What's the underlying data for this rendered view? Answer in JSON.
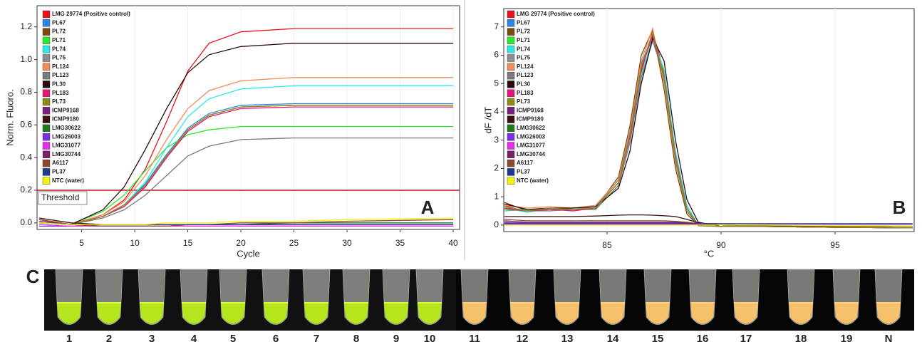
{
  "chart_data": [
    {
      "type": "line",
      "panel": "A",
      "x_label": "Cycle",
      "y_label": "Norm. Fluoro.",
      "x": [
        1,
        4,
        7,
        9,
        11,
        13,
        15,
        17,
        20,
        25,
        30,
        40
      ],
      "xlim": [
        0.8,
        40.6
      ],
      "xticks": [
        5,
        10,
        15,
        20,
        25,
        30,
        35,
        40
      ],
      "ylim": [
        -0.04,
        1.33
      ],
      "yticks": [
        {
          "value": 0,
          "label": "0.0"
        },
        0.2,
        0.4,
        0.6,
        0.8,
        {
          "value": 1,
          "label": "1.0"
        },
        1.2
      ],
      "threshold": {
        "value": 0.2,
        "label": "Threshold",
        "color": "#c0141c"
      },
      "series": [
        {
          "name": "LMG 29774 (Positive control)",
          "color": "#e8141c",
          "values": [
            0.02,
            -0.01,
            0.05,
            0.14,
            0.33,
            0.62,
            0.93,
            1.1,
            1.17,
            1.19,
            1.19,
            1.19
          ]
        },
        {
          "name": "PL67",
          "color": "#2b84e8",
          "values": [
            0.02,
            -0.01,
            0.04,
            0.11,
            0.24,
            0.42,
            0.58,
            0.67,
            0.72,
            0.73,
            0.73,
            0.73
          ]
        },
        {
          "name": "PL72",
          "color": "#7b4a12",
          "values": [
            0.02,
            -0.01,
            0.04,
            0.11,
            0.23,
            0.41,
            0.57,
            0.66,
            0.71,
            0.72,
            0.72,
            0.72
          ]
        },
        {
          "name": "PL71",
          "color": "#2ee82e",
          "values": [
            0.02,
            -0.01,
            0.07,
            0.17,
            0.32,
            0.46,
            0.54,
            0.57,
            0.59,
            0.59,
            0.59,
            0.59
          ]
        },
        {
          "name": "PL74",
          "color": "#2ee8e8",
          "values": [
            0.02,
            -0.01,
            0.04,
            0.11,
            0.25,
            0.46,
            0.65,
            0.76,
            0.82,
            0.84,
            0.84,
            0.84
          ]
        },
        {
          "name": "PL75",
          "color": "#8c8c8c",
          "values": [
            0.02,
            -0.01,
            0.04,
            0.1,
            0.23,
            0.41,
            0.57,
            0.66,
            0.71,
            0.72,
            0.72,
            0.72
          ]
        },
        {
          "name": "PL124",
          "color": "#f28c5a",
          "values": [
            0.02,
            -0.01,
            0.05,
            0.13,
            0.29,
            0.51,
            0.7,
            0.81,
            0.87,
            0.89,
            0.89,
            0.89
          ]
        },
        {
          "name": "PL123",
          "color": "#7a7a7a",
          "values": [
            0.02,
            -0.01,
            0.03,
            0.08,
            0.17,
            0.29,
            0.41,
            0.47,
            0.51,
            0.52,
            0.52,
            0.52
          ]
        },
        {
          "name": "PL30",
          "color": "#2a0a0a",
          "values": [
            0.02,
            -0.01,
            0.08,
            0.22,
            0.45,
            0.7,
            0.92,
            1.03,
            1.08,
            1.1,
            1.1,
            1.1
          ]
        },
        {
          "name": "PL183",
          "color": "#e8147a",
          "values": [
            0.02,
            -0.01,
            0.04,
            0.1,
            0.22,
            0.4,
            0.56,
            0.65,
            0.7,
            0.71,
            0.71,
            0.71
          ]
        },
        {
          "name": "PL73",
          "color": "#8c8c14",
          "values": [
            0.02,
            -0.01,
            0.04,
            0.11,
            0.23,
            0.41,
            0.57,
            0.66,
            0.71,
            0.72,
            0.72,
            0.72
          ]
        },
        {
          "name": "ICMP9168",
          "color": "#7a1f7a",
          "values": [
            0.01,
            -0.01,
            -0.02,
            -0.02,
            -0.02,
            -0.02,
            -0.02,
            -0.02,
            -0.02,
            -0.02,
            -0.02,
            -0.02
          ]
        },
        {
          "name": "ICMP9180",
          "color": "#3a1010",
          "values": [
            0.03,
            0.0,
            -0.01,
            -0.01,
            -0.01,
            -0.01,
            -0.01,
            -0.01,
            -0.01,
            -0.01,
            -0.01,
            -0.01
          ]
        },
        {
          "name": "LMG30622",
          "color": "#1f7a1f",
          "values": [
            0.0,
            -0.01,
            -0.01,
            -0.01,
            -0.01,
            -0.01,
            -0.01,
            -0.01,
            -0.01,
            0.0,
            0.0,
            0.0
          ]
        },
        {
          "name": "LMG26003",
          "color": "#7a2ee8",
          "values": [
            -0.02,
            -0.02,
            -0.02,
            -0.02,
            -0.02,
            -0.02,
            -0.02,
            -0.02,
            -0.02,
            -0.02,
            -0.02,
            -0.02
          ]
        },
        {
          "name": "LMG31077",
          "color": "#e82ee8",
          "values": [
            -0.01,
            -0.02,
            -0.02,
            -0.02,
            -0.02,
            -0.02,
            -0.02,
            -0.02,
            -0.02,
            -0.02,
            -0.02,
            -0.02
          ]
        },
        {
          "name": "LMG30744",
          "color": "#7a1f6a",
          "values": [
            0.0,
            -0.01,
            -0.01,
            -0.01,
            -0.01,
            -0.01,
            -0.01,
            -0.01,
            -0.01,
            -0.01,
            -0.01,
            -0.01
          ]
        },
        {
          "name": "A6117",
          "color": "#8c4a2a",
          "values": [
            0.02,
            -0.01,
            -0.02,
            -0.02,
            -0.02,
            -0.02,
            -0.01,
            -0.01,
            0.0,
            0.0,
            0.01,
            0.02
          ]
        },
        {
          "name": "PL37",
          "color": "#1f3a8c",
          "values": [
            0.0,
            -0.01,
            -0.01,
            -0.01,
            -0.01,
            -0.01,
            -0.01,
            -0.01,
            -0.01,
            -0.01,
            -0.01,
            -0.01
          ]
        },
        {
          "name": "NTC (water)",
          "color": "#f2f20a",
          "values": [
            0.0,
            -0.01,
            -0.01,
            -0.01,
            -0.01,
            0.0,
            0.0,
            0.0,
            0.01,
            0.01,
            0.02,
            0.03
          ]
        }
      ]
    },
    {
      "type": "line",
      "panel": "B",
      "x_label": "°C",
      "y_label": "dF /dT",
      "x": [
        80.5,
        81.5,
        82.5,
        83.5,
        84.5,
        85.5,
        86,
        86.5,
        87,
        87.5,
        88,
        88.5,
        89,
        90,
        92,
        95,
        98.4
      ],
      "xlim": [
        80.47,
        98.47
      ],
      "xticks": [
        85,
        90,
        95
      ],
      "ylim": [
        -0.23,
        7.65
      ],
      "yticks": [
        0,
        1,
        2,
        3,
        4,
        5,
        6,
        7
      ],
      "series": [
        {
          "name": "LMG 29774 (Positive control)",
          "color": "#e8141c",
          "values": [
            0.7,
            0.45,
            0.6,
            0.55,
            0.6,
            1.5,
            3.0,
            5.4,
            6.85,
            5.4,
            2.5,
            0.6,
            0.0,
            -0.05,
            -0.05,
            -0.08,
            -0.1
          ]
        },
        {
          "name": "PL67",
          "color": "#2b84e8",
          "values": [
            0.6,
            0.5,
            0.55,
            0.6,
            0.65,
            1.6,
            3.3,
            5.7,
            6.7,
            5.0,
            2.2,
            0.5,
            0.0,
            -0.05,
            -0.05,
            -0.08,
            -0.1
          ]
        },
        {
          "name": "PL72",
          "color": "#7b4a12",
          "values": [
            0.8,
            0.5,
            0.6,
            0.5,
            0.6,
            1.7,
            3.5,
            6.0,
            6.9,
            4.8,
            2.0,
            0.4,
            -0.02,
            -0.05,
            -0.05,
            -0.08,
            -0.1
          ]
        },
        {
          "name": "PL71",
          "color": "#2ee82e",
          "values": [
            0.5,
            0.55,
            0.5,
            0.6,
            0.6,
            1.5,
            3.1,
            5.5,
            6.75,
            5.3,
            2.4,
            0.6,
            0.0,
            -0.05,
            -0.05,
            -0.08,
            -0.1
          ]
        },
        {
          "name": "PL74",
          "color": "#2ee8e8",
          "values": [
            0.6,
            0.45,
            0.6,
            0.55,
            0.55,
            1.4,
            3.0,
            5.3,
            6.6,
            5.5,
            2.6,
            0.7,
            0.0,
            -0.05,
            -0.05,
            -0.08,
            -0.1
          ]
        },
        {
          "name": "PL75",
          "color": "#8c8c8c",
          "values": [
            0.65,
            0.5,
            0.55,
            0.6,
            0.6,
            1.6,
            3.2,
            5.6,
            6.8,
            5.1,
            2.3,
            0.5,
            0.0,
            -0.05,
            -0.05,
            -0.08,
            -0.1
          ]
        },
        {
          "name": "PL124",
          "color": "#f28c5a",
          "values": [
            0.7,
            0.6,
            0.65,
            0.6,
            0.7,
            1.6,
            3.3,
            5.8,
            6.95,
            5.0,
            2.2,
            0.5,
            0.0,
            -0.05,
            -0.05,
            -0.08,
            -0.1
          ]
        },
        {
          "name": "PL123",
          "color": "#7a7a7a",
          "values": [
            0.55,
            0.5,
            0.5,
            0.55,
            0.55,
            1.4,
            2.9,
            5.2,
            6.5,
            5.3,
            2.5,
            0.6,
            0.0,
            -0.05,
            -0.05,
            -0.08,
            -0.1
          ]
        },
        {
          "name": "PL30",
          "color": "#2a0a0a",
          "values": [
            0.75,
            0.55,
            0.6,
            0.6,
            0.65,
            1.3,
            2.6,
            5.0,
            6.6,
            5.8,
            3.0,
            0.9,
            0.1,
            -0.05,
            -0.05,
            -0.08,
            -0.1
          ]
        },
        {
          "name": "PL183",
          "color": "#e8147a",
          "values": [
            0.6,
            0.5,
            0.55,
            0.5,
            0.6,
            1.5,
            3.1,
            5.5,
            6.7,
            5.2,
            2.3,
            0.5,
            0.0,
            -0.05,
            -0.05,
            -0.08,
            -0.1
          ]
        },
        {
          "name": "PL73",
          "color": "#8c8c14",
          "values": [
            0.65,
            0.5,
            0.6,
            0.55,
            0.6,
            1.5,
            3.2,
            5.6,
            6.8,
            5.2,
            2.3,
            0.5,
            0.0,
            -0.05,
            -0.05,
            -0.08,
            -0.1
          ]
        },
        {
          "name": "ICMP9168",
          "color": "#7a1f7a",
          "values": [
            0.1,
            0.05,
            0.05,
            0.05,
            0.05,
            0.05,
            0.05,
            0.05,
            0.05,
            0.05,
            0.05,
            0.05,
            0.03,
            0.0,
            -0.02,
            -0.05,
            -0.05
          ]
        },
        {
          "name": "ICMP9180",
          "color": "#3a1010",
          "values": [
            0.3,
            0.3,
            0.3,
            0.3,
            0.32,
            0.35,
            0.36,
            0.36,
            0.35,
            0.33,
            0.3,
            0.2,
            0.08,
            0.0,
            -0.02,
            -0.05,
            -0.05
          ]
        },
        {
          "name": "LMG30622",
          "color": "#1f7a1f",
          "values": [
            0.05,
            0.05,
            0.05,
            0.05,
            0.05,
            0.05,
            0.05,
            0.05,
            0.05,
            0.05,
            0.05,
            0.05,
            0.03,
            0.0,
            -0.02,
            -0.05,
            -0.05
          ]
        },
        {
          "name": "LMG26003",
          "color": "#7a2ee8",
          "values": [
            0.08,
            0.08,
            0.08,
            0.08,
            0.08,
            0.08,
            0.08,
            0.08,
            0.08,
            0.08,
            0.08,
            0.08,
            0.06,
            0.05,
            0.04,
            0.03,
            0.03
          ]
        },
        {
          "name": "LMG31077",
          "color": "#e82ee8",
          "values": [
            0.03,
            0.03,
            0.03,
            0.03,
            0.03,
            0.03,
            0.03,
            0.03,
            0.03,
            0.03,
            0.03,
            0.03,
            0.02,
            0.0,
            -0.02,
            -0.04,
            -0.05
          ]
        },
        {
          "name": "LMG30744",
          "color": "#7a1f6a",
          "values": [
            0.15,
            0.1,
            0.1,
            0.1,
            0.1,
            0.1,
            0.1,
            0.1,
            0.1,
            0.1,
            0.1,
            0.08,
            0.05,
            0.0,
            -0.02,
            -0.05,
            -0.05
          ]
        },
        {
          "name": "A6117",
          "color": "#8c4a2a",
          "values": [
            0.2,
            0.15,
            0.15,
            0.15,
            0.15,
            0.15,
            0.15,
            0.15,
            0.15,
            0.15,
            0.13,
            0.1,
            0.05,
            0.0,
            -0.02,
            -0.05,
            -0.05
          ]
        },
        {
          "name": "PL37",
          "color": "#1f3a8c",
          "values": [
            0.05,
            0.05,
            0.05,
            0.05,
            0.05,
            0.05,
            0.05,
            0.05,
            0.05,
            0.05,
            0.05,
            0.05,
            0.05,
            0.05,
            0.05,
            0.05,
            0.05
          ]
        },
        {
          "name": "NTC (water)",
          "color": "#f2f20a",
          "values": [
            0.0,
            0.0,
            0.0,
            0.0,
            0.0,
            0.0,
            0.0,
            0.0,
            0.0,
            0.0,
            0.0,
            0.0,
            0.0,
            0.0,
            0.0,
            -0.02,
            -0.03
          ]
        }
      ]
    }
  ],
  "panel_c": {
    "label": "C",
    "tubes": [
      "1",
      "2",
      "3",
      "4",
      "5",
      "6",
      "7",
      "8",
      "9",
      "10",
      "11",
      "12",
      "13",
      "14",
      "15",
      "16",
      "17",
      "18",
      "19",
      "N"
    ]
  }
}
